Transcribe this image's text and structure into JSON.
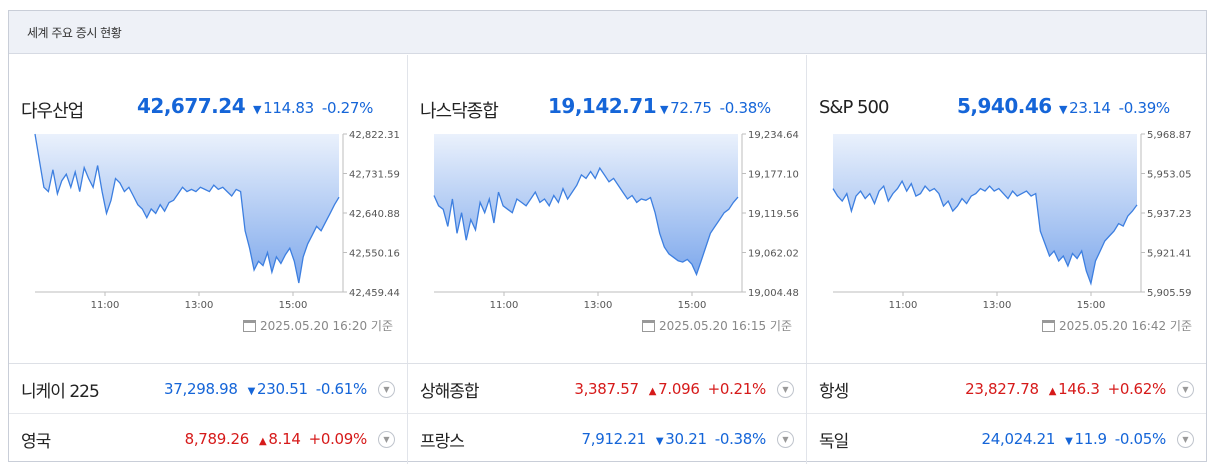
{
  "header": {
    "title": "세계 주요 증시 현황"
  },
  "panels": [
    {
      "name": "다우산업",
      "value": "42,677.24",
      "direction": "down",
      "arrow": "▼",
      "change": "114.83",
      "pct": "-0.27%",
      "stamp": "2025.05.20 16:20 기준",
      "chart_data": {
        "type": "area",
        "x_labels": [
          "11:00",
          "13:00",
          "15:00"
        ],
        "y_ticks": [
          "42,822.31",
          "42,731.59",
          "42,640.88",
          "42,550.16",
          "42,459.44"
        ],
        "ylim": [
          42459.44,
          42822.31
        ],
        "baseline": 42822.31,
        "values": [
          42822.31,
          42760,
          42700,
          42690,
          42740,
          42685,
          42715,
          42730,
          42700,
          42735,
          42690,
          42745,
          42720,
          42700,
          42750,
          42690,
          42640,
          42670,
          42720,
          42710,
          42690,
          42700,
          42680,
          42660,
          42650,
          42630,
          42650,
          42640,
          42660,
          42645,
          42665,
          42670,
          42685,
          42700,
          42690,
          42695,
          42690,
          42700,
          42695,
          42690,
          42705,
          42695,
          42700,
          42690,
          42680,
          42695,
          42690,
          42600,
          42560,
          42510,
          42530,
          42520,
          42550,
          42505,
          42540,
          42525,
          42545,
          42560,
          42530,
          42480,
          42540,
          42570,
          42590,
          42610,
          42600,
          42620,
          42640,
          42660,
          42677.24
        ]
      }
    },
    {
      "name": "나스닥종합",
      "value": "19,142.71",
      "direction": "down",
      "arrow": "▼",
      "change": "72.75",
      "pct": "-0.38%",
      "stamp": "2025.05.20 16:15 기준",
      "chart_data": {
        "type": "area",
        "x_labels": [
          "11:00",
          "13:00",
          "15:00"
        ],
        "y_ticks": [
          "19,234.64",
          "19,177.10",
          "19,119.56",
          "19,062.02",
          "19,004.48"
        ],
        "ylim": [
          19004.48,
          19234.64
        ],
        "baseline": 19234.64,
        "values": [
          19145,
          19130,
          19125,
          19100,
          19140,
          19090,
          19120,
          19080,
          19110,
          19095,
          19135,
          19120,
          19140,
          19105,
          19150,
          19130,
          19125,
          19120,
          19140,
          19135,
          19130,
          19140,
          19150,
          19135,
          19140,
          19130,
          19145,
          19135,
          19155,
          19140,
          19150,
          19160,
          19175,
          19170,
          19180,
          19170,
          19185,
          19175,
          19165,
          19170,
          19160,
          19150,
          19140,
          19145,
          19135,
          19140,
          19138,
          19142,
          19120,
          19090,
          19070,
          19060,
          19055,
          19050,
          19048,
          19052,
          19045,
          19030,
          19050,
          19070,
          19090,
          19100,
          19110,
          19120,
          19125,
          19135,
          19142.71
        ]
      }
    },
    {
      "name": "S&P 500",
      "value": "5,940.46",
      "direction": "down",
      "arrow": "▼",
      "change": "23.14",
      "pct": "-0.39%",
      "stamp": "2025.05.20 16:42 기준",
      "chart_data": {
        "type": "area",
        "x_labels": [
          "11:00",
          "13:00",
          "15:00"
        ],
        "y_ticks": [
          "5,968.87",
          "5,953.05",
          "5,937.23",
          "5,921.41",
          "5,905.59"
        ],
        "ylim": [
          5905.59,
          5968.87
        ],
        "baseline": 5968.87,
        "values": [
          5947,
          5944,
          5942,
          5945,
          5938,
          5944,
          5946,
          5943,
          5945,
          5941,
          5946,
          5948,
          5942,
          5945,
          5947,
          5950,
          5946,
          5949,
          5944,
          5945,
          5948,
          5946,
          5947,
          5945,
          5940,
          5942,
          5938,
          5940,
          5943,
          5941,
          5944,
          5945,
          5947,
          5946,
          5948,
          5946,
          5947,
          5945,
          5943,
          5946,
          5944,
          5945,
          5946,
          5944,
          5945,
          5930,
          5925,
          5920,
          5922,
          5918,
          5920,
          5916,
          5921,
          5919,
          5922,
          5914,
          5909,
          5918,
          5922,
          5926,
          5928,
          5930,
          5933,
          5932,
          5936,
          5938,
          5940.46
        ]
      }
    }
  ],
  "rows": [
    [
      {
        "name": "니케이 225",
        "value": "37,298.98",
        "direction": "down",
        "arrow": "▼",
        "change": "230.51",
        "pct": "-0.61%"
      },
      {
        "name": "상해종합",
        "value": "3,387.57",
        "direction": "up",
        "arrow": "▲",
        "change": "7.096",
        "pct": "+0.21%"
      },
      {
        "name": "항셍",
        "value": "23,827.78",
        "direction": "up",
        "arrow": "▲",
        "change": "146.3",
        "pct": "+0.62%"
      }
    ],
    [
      {
        "name": "영국",
        "value": "8,789.26",
        "direction": "up",
        "arrow": "▲",
        "change": "8.14",
        "pct": "+0.09%"
      },
      {
        "name": "프랑스",
        "value": "7,912.21",
        "direction": "down",
        "arrow": "▼",
        "change": "30.21",
        "pct": "-0.38%"
      },
      {
        "name": "독일",
        "value": "24,024.21",
        "direction": "down",
        "arrow": "▼",
        "change": "11.9",
        "pct": "-0.05%"
      }
    ]
  ],
  "icons": {
    "more": "chevron-down-icon",
    "stamp": "calendar-icon"
  },
  "colors": {
    "down": "#1565d8",
    "up": "#d61a1a",
    "line": "#3d7fe0"
  }
}
